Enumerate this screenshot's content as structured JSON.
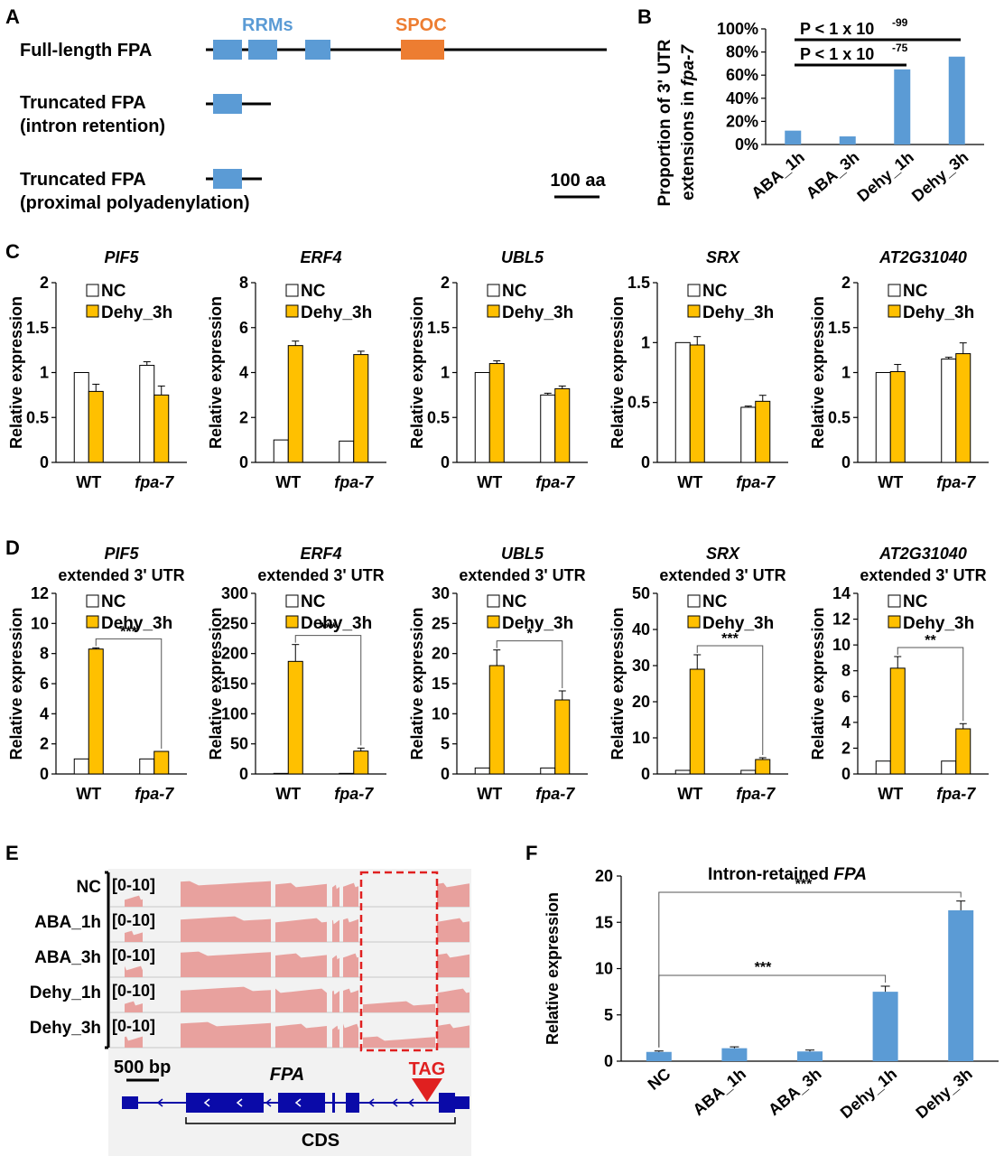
{
  "panels": {
    "A": {
      "letter": "A",
      "rows": [
        "Full-length FPA",
        "Truncated FPA",
        "(intron retention)",
        "Truncated FPA",
        "(proximal polyadenylation)"
      ],
      "domains": {
        "rrm": "RRMs",
        "spoc": "SPOC"
      },
      "scale": "100 aa"
    },
    "B": {
      "letter": "B"
    },
    "C": {
      "letter": "C"
    },
    "D": {
      "letter": "D"
    },
    "E": {
      "letter": "E",
      "tracks": [
        "NC",
        "ABA_1h",
        "ABA_3h",
        "Dehy_1h",
        "Dehy_3h"
      ],
      "range": "[0-10]",
      "scale": "500 bp",
      "gene": "FPA",
      "codon": "TAG",
      "cds": "CDS"
    },
    "F": {
      "letter": "F"
    }
  },
  "colors": {
    "blue": "#5b9bd5",
    "orange": "#ed7d31",
    "gold": "#ffc000",
    "coverage": "#e8a19e",
    "red": "#e02020",
    "gene": "#0a0aa8",
    "trackbg": "#f2f2f2"
  },
  "chart_data": [
    {
      "id": "B",
      "type": "bar",
      "categories": [
        "ABA_1h",
        "ABA_3h",
        "Dehy_1h",
        "Dehy_3h"
      ],
      "values": [
        12,
        7,
        65,
        76
      ],
      "ylabel_line1": "Proportion of 3' UTR",
      "ylabel_line2": "extensions in ",
      "ylabel_italic": "fpa-7",
      "yticks": [
        "0%",
        "20%",
        "40%",
        "60%",
        "80%",
        "100%"
      ],
      "ylim": [
        0,
        100
      ],
      "annotations": [
        {
          "text": "P < 1 x 10",
          "sup": "-99"
        },
        {
          "text": "P < 1 x 10",
          "sup": "-75"
        }
      ]
    },
    {
      "id": "C1",
      "type": "bar",
      "title": "PIF5",
      "subtitle": "",
      "categories": [
        "WT",
        "fpa-7"
      ],
      "ylabel": "Relative expression",
      "yticks": [
        "0",
        "0.5",
        "1",
        "1.5",
        "2"
      ],
      "ylim": [
        0,
        2
      ],
      "series": [
        {
          "name": "NC",
          "values": [
            1.0,
            1.08
          ],
          "errors": [
            0,
            0.04
          ]
        },
        {
          "name": "Dehy_3h",
          "values": [
            0.79,
            0.75
          ],
          "errors": [
            0.08,
            0.1
          ]
        }
      ],
      "sig": ""
    },
    {
      "id": "C2",
      "type": "bar",
      "title": "ERF4",
      "subtitle": "",
      "categories": [
        "WT",
        "fpa-7"
      ],
      "ylabel": "Relative expression",
      "yticks": [
        "0",
        "2",
        "4",
        "6",
        "8"
      ],
      "ylim": [
        0,
        8
      ],
      "series": [
        {
          "name": "NC",
          "values": [
            1.0,
            0.95
          ],
          "errors": [
            0,
            0
          ]
        },
        {
          "name": "Dehy_3h",
          "values": [
            5.2,
            4.8
          ],
          "errors": [
            0.2,
            0.15
          ]
        }
      ],
      "sig": ""
    },
    {
      "id": "C3",
      "type": "bar",
      "title": "UBL5",
      "subtitle": "",
      "categories": [
        "WT",
        "fpa-7"
      ],
      "ylabel": "Relative expression",
      "yticks": [
        "0",
        "0.5",
        "1",
        "1.5",
        "2"
      ],
      "ylim": [
        0,
        2
      ],
      "series": [
        {
          "name": "NC",
          "values": [
            1.0,
            0.75
          ],
          "errors": [
            0,
            0.02
          ]
        },
        {
          "name": "Dehy_3h",
          "values": [
            1.1,
            0.82
          ],
          "errors": [
            0.03,
            0.03
          ]
        }
      ],
      "sig": ""
    },
    {
      "id": "C4",
      "type": "bar",
      "title": "SRX",
      "subtitle": "",
      "categories": [
        "WT",
        "fpa-7"
      ],
      "ylabel": "Relative expression",
      "yticks": [
        "0",
        "0.5",
        "1",
        "1.5"
      ],
      "ylim": [
        0,
        1.5
      ],
      "series": [
        {
          "name": "NC",
          "values": [
            1.0,
            0.46
          ],
          "errors": [
            0,
            0.01
          ]
        },
        {
          "name": "Dehy_3h",
          "values": [
            0.98,
            0.51
          ],
          "errors": [
            0.07,
            0.05
          ]
        }
      ],
      "sig": ""
    },
    {
      "id": "C5",
      "type": "bar",
      "title": "AT2G31040",
      "subtitle": "",
      "categories": [
        "WT",
        "fpa-7"
      ],
      "ylabel": "Relative expression",
      "yticks": [
        "0",
        "0.5",
        "1",
        "1.5",
        "2"
      ],
      "ylim": [
        0,
        2
      ],
      "series": [
        {
          "name": "NC",
          "values": [
            1.0,
            1.15
          ],
          "errors": [
            0,
            0.02
          ]
        },
        {
          "name": "Dehy_3h",
          "values": [
            1.01,
            1.21
          ],
          "errors": [
            0.08,
            0.12
          ]
        }
      ],
      "sig": ""
    },
    {
      "id": "D1",
      "type": "bar",
      "title": "PIF5",
      "subtitle": "extended 3' UTR",
      "categories": [
        "WT",
        "fpa-7"
      ],
      "ylabel": "Relative expression",
      "yticks": [
        "0",
        "2",
        "4",
        "6",
        "8",
        "10",
        "12"
      ],
      "ylim": [
        0,
        12
      ],
      "series": [
        {
          "name": "NC",
          "values": [
            1.0,
            1.0
          ],
          "errors": [
            0,
            0
          ]
        },
        {
          "name": "Dehy_3h",
          "values": [
            8.3,
            1.5
          ],
          "errors": [
            0.08,
            0
          ]
        }
      ],
      "sig": "***"
    },
    {
      "id": "D2",
      "type": "bar",
      "title": "ERF4",
      "subtitle": "extended 3' UTR",
      "categories": [
        "WT",
        "fpa-7"
      ],
      "ylabel": "Relative expression",
      "yticks": [
        "0",
        "50",
        "100",
        "150",
        "200",
        "250",
        "300"
      ],
      "ylim": [
        0,
        300
      ],
      "series": [
        {
          "name": "NC",
          "values": [
            1,
            1
          ],
          "errors": [
            0,
            0
          ]
        },
        {
          "name": "Dehy_3h",
          "values": [
            187,
            38
          ],
          "errors": [
            28,
            5
          ]
        }
      ],
      "sig": "***"
    },
    {
      "id": "D3",
      "type": "bar",
      "title": "UBL5",
      "subtitle": "extended 3' UTR",
      "categories": [
        "WT",
        "fpa-7"
      ],
      "ylabel": "Relative expression",
      "yticks": [
        "0",
        "5",
        "10",
        "15",
        "20",
        "25",
        "30"
      ],
      "ylim": [
        0,
        30
      ],
      "series": [
        {
          "name": "NC",
          "values": [
            1.0,
            1.0
          ],
          "errors": [
            0,
            0
          ]
        },
        {
          "name": "Dehy_3h",
          "values": [
            18,
            12.3
          ],
          "errors": [
            2.6,
            1.5
          ]
        }
      ],
      "sig": "*"
    },
    {
      "id": "D4",
      "type": "bar",
      "title": "SRX",
      "subtitle": "extended 3' UTR",
      "categories": [
        "WT",
        "fpa-7"
      ],
      "ylabel": "Relative expression",
      "yticks": [
        "0",
        "10",
        "20",
        "30",
        "40",
        "50"
      ],
      "ylim": [
        0,
        50
      ],
      "series": [
        {
          "name": "NC",
          "values": [
            1.0,
            1.0
          ],
          "errors": [
            0,
            0
          ]
        },
        {
          "name": "Dehy_3h",
          "values": [
            29,
            4
          ],
          "errors": [
            4,
            0.5
          ]
        }
      ],
      "sig": "***"
    },
    {
      "id": "D5",
      "type": "bar",
      "title": "AT2G31040",
      "subtitle": "extended 3' UTR",
      "categories": [
        "WT",
        "fpa-7"
      ],
      "ylabel": "Relative expression",
      "yticks": [
        "0",
        "2",
        "4",
        "6",
        "8",
        "10",
        "12",
        "14"
      ],
      "ylim": [
        0,
        14
      ],
      "series": [
        {
          "name": "NC",
          "values": [
            1.0,
            1.0
          ],
          "errors": [
            0,
            0
          ]
        },
        {
          "name": "Dehy_3h",
          "values": [
            8.2,
            3.5
          ],
          "errors": [
            0.9,
            0.4
          ]
        }
      ],
      "sig": "**"
    },
    {
      "id": "F",
      "type": "bar",
      "title": "Intron-retained ",
      "title_italic": "FPA",
      "categories": [
        "NC",
        "ABA_1h",
        "ABA_3h",
        "Dehy_1h",
        "Dehy_3h"
      ],
      "values": [
        1.0,
        1.4,
        1.05,
        7.5,
        16.3
      ],
      "errors": [
        0.1,
        0.15,
        0.15,
        0.6,
        1.0
      ],
      "ylabel": "Relative expression",
      "yticks": [
        "0",
        "5",
        "10",
        "15",
        "20"
      ],
      "ylim": [
        0,
        20
      ],
      "sig": [
        "***",
        "***"
      ]
    }
  ]
}
